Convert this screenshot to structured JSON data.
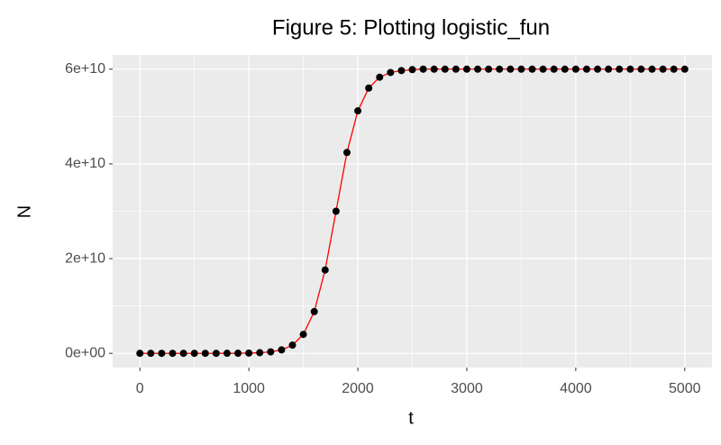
{
  "chart_data": {
    "type": "scatter",
    "title": "Figure 5: Plotting logistic_fun",
    "x_label": "t",
    "y_label": "N",
    "x": [
      0,
      100,
      200,
      300,
      400,
      500,
      600,
      700,
      800,
      900,
      1000,
      1100,
      1200,
      1300,
      1400,
      1500,
      1600,
      1700,
      1800,
      1900,
      2000,
      2100,
      2200,
      2300,
      2400,
      2500,
      2600,
      2700,
      2800,
      2900,
      3000,
      3100,
      3200,
      3300,
      3400,
      3500,
      3600,
      3700,
      3800,
      3900,
      4000,
      4100,
      4200,
      4300,
      4400,
      4500,
      4600,
      4700,
      4800,
      4900,
      5000
    ],
    "values": [
      0,
      0,
      0,
      0,
      0,
      0,
      0,
      1000000,
      9000000,
      22000000,
      52500000,
      127000000,
      305000000,
      727000000,
      1720000000,
      4000000000,
      8810000000,
      17600000000,
      30000000000,
      42400000000,
      51200000000,
      56000000000,
      58300000000,
      59300000000,
      59700000000,
      59900000000,
      60000000000,
      60000000000,
      60000000000,
      60000000000,
      60000000000,
      60000000000,
      60000000000,
      60000000000,
      60000000000,
      60000000000,
      60000000000,
      60000000000,
      60000000000,
      60000000000,
      60000000000,
      60000000000,
      60000000000,
      60000000000,
      60000000000,
      60000000000,
      60000000000,
      60000000000,
      60000000000,
      60000000000,
      60000000000
    ],
    "point_color": "#000000",
    "line_color": "#ff0000",
    "xlim": [
      -250,
      5250
    ],
    "xticks": [
      0,
      1000,
      2000,
      3000,
      4000,
      5000
    ],
    "minor_xticks": [
      500,
      1500,
      2500,
      3500,
      4500
    ],
    "ylim": [
      -3000000000,
      63000000000
    ],
    "yticks": [
      {
        "value": 0,
        "label": "0e+00"
      },
      {
        "value": 20000000000,
        "label": "2e+10"
      },
      {
        "value": 40000000000,
        "label": "4e+10"
      },
      {
        "value": 60000000000,
        "label": "6e+10"
      }
    ],
    "minor_yticks": [
      10000000000,
      30000000000,
      50000000000
    ],
    "grid": true
  }
}
